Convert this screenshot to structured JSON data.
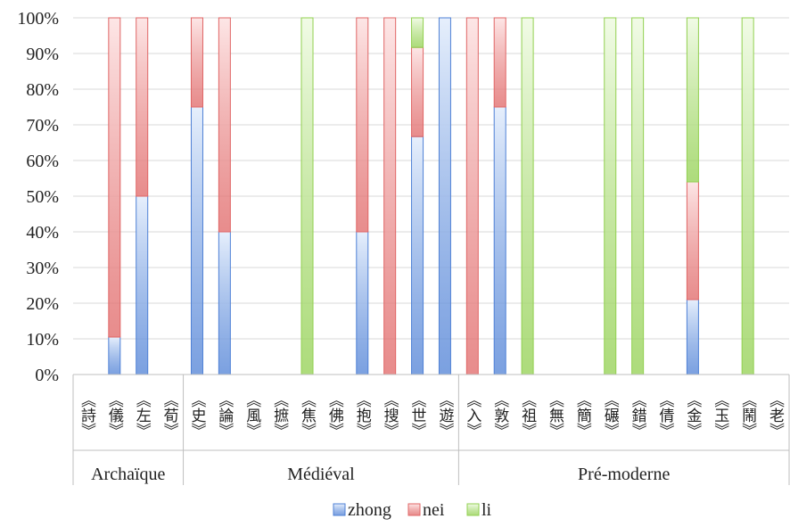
{
  "colors": {
    "zhong": "#4f81d6",
    "zhong_light": "#e6effc",
    "nei": "#e06666",
    "nei_light": "#fde6e6",
    "li": "#92d050",
    "li_light": "#f1fbe6",
    "grid": "#d9d9d9",
    "axis": "#bfbfbf"
  },
  "chart_data": {
    "type": "bar",
    "stacked": true,
    "normalized": true,
    "ylim": [
      0,
      100
    ],
    "y_ticks": [
      "0%",
      "10%",
      "20%",
      "30%",
      "40%",
      "50%",
      "60%",
      "70%",
      "80%",
      "90%",
      "100%"
    ],
    "categories": [
      "《詩》",
      "《儀》",
      "《左》",
      "《荀》",
      "《史》",
      "《論》",
      "《風》",
      "《摭》",
      "《焦》",
      "《佛》",
      "《抱》",
      "《搜》",
      "《世》",
      "《遊》",
      "《入》",
      "《敦》",
      "《祖》",
      "《無》",
      "《簡》",
      "《碾》",
      "《錯》",
      "《倩》",
      "《金》",
      "《玉》",
      "《鬧》",
      "《老》"
    ],
    "groups": [
      {
        "label": "Archaïque",
        "start": 0,
        "count": 4
      },
      {
        "label": "Médiéval",
        "start": 4,
        "count": 10
      },
      {
        "label": "Pré-moderne",
        "start": 14,
        "count": 12
      }
    ],
    "series": [
      {
        "name": "zhong",
        "values": [
          0,
          10.5,
          50,
          0,
          75,
          40,
          0,
          0,
          0,
          0,
          40,
          0,
          66.7,
          100,
          0,
          75,
          0,
          0,
          0,
          0,
          0,
          0,
          21,
          0,
          0,
          0
        ]
      },
      {
        "name": "nei",
        "values": [
          0,
          89.5,
          50,
          0,
          25,
          60,
          0,
          0,
          0,
          0,
          60,
          100,
          25,
          0,
          100,
          25,
          0,
          0,
          0,
          0,
          0,
          0,
          33,
          0,
          0,
          0
        ]
      },
      {
        "name": "li",
        "values": [
          0,
          0,
          0,
          0,
          0,
          0,
          0,
          0,
          100,
          0,
          0,
          0,
          8.3,
          0,
          0,
          0,
          100,
          0,
          0,
          100,
          100,
          0,
          46,
          0,
          100,
          0
        ]
      }
    ],
    "legend_position": "bottom",
    "grid": true
  }
}
